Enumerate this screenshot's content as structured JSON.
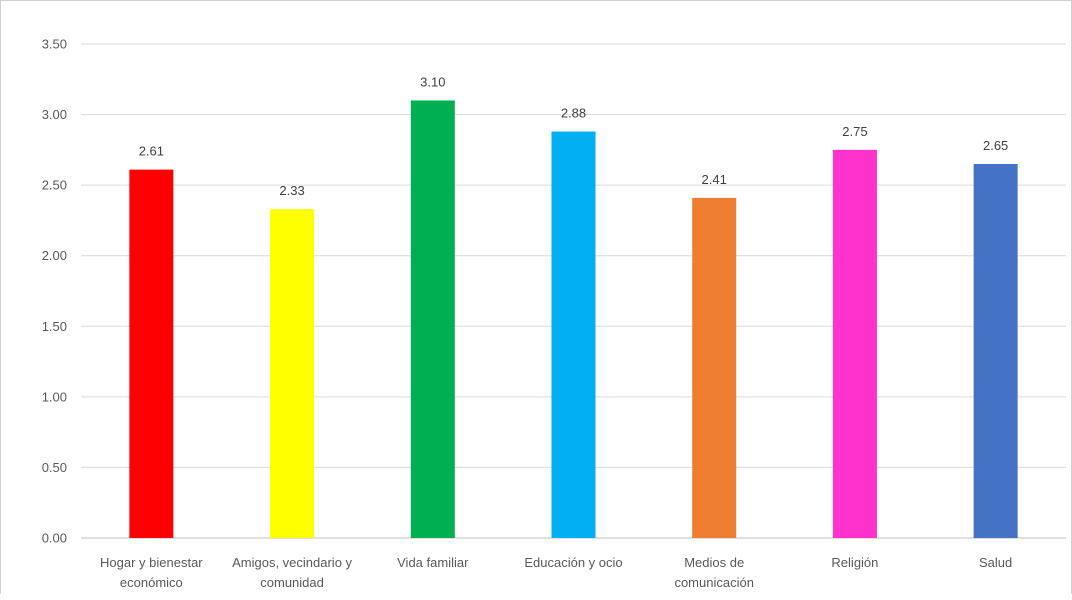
{
  "chart_data": {
    "type": "bar",
    "title": "",
    "xlabel": "",
    "ylabel": "",
    "ylim": [
      0,
      3.5
    ],
    "yticks": [
      "0.00",
      "0.50",
      "1.00",
      "1.50",
      "2.00",
      "2.50",
      "3.00",
      "3.50"
    ],
    "grid": true,
    "legend": "none",
    "categories": [
      [
        "Hogar y bienestar",
        "económico"
      ],
      [
        "Amigos, vecindario y",
        "comunidad"
      ],
      [
        "Vida familiar"
      ],
      [
        "Educación y ocio"
      ],
      [
        "Medios de",
        "comunicación"
      ],
      [
        "Religión"
      ],
      [
        "Salud"
      ]
    ],
    "values": [
      2.61,
      2.33,
      3.1,
      2.88,
      2.41,
      2.75,
      2.65
    ],
    "data_labels": [
      "2.61",
      "2.33",
      "3.10",
      "2.88",
      "2.41",
      "2.75",
      "2.65"
    ],
    "colors": [
      "#ff0000",
      "#ffff00",
      "#00b050",
      "#00b0f0",
      "#ed7d31",
      "#ff33cc",
      "#4472c4"
    ]
  }
}
